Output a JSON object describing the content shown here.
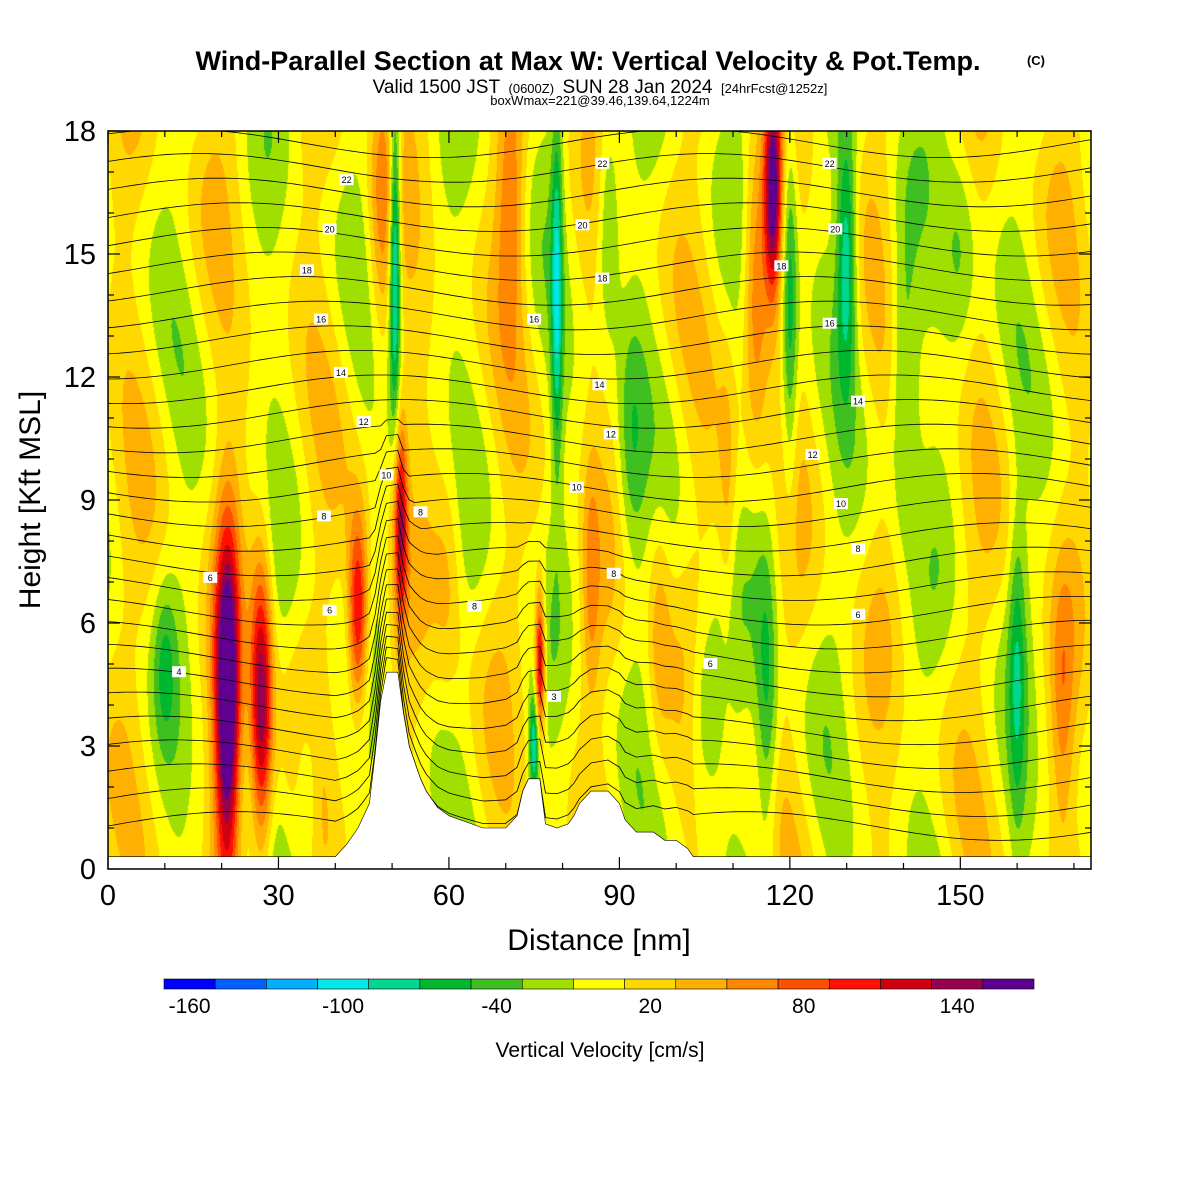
{
  "chart_data": {
    "type": "heatmap",
    "title": {
      "main": "Wind-Parallel Section at Max W: Vertical Velocity & Pot.Temp.",
      "copyright": "(C)",
      "valid_prefix": "Valid 1500 JST",
      "valid_z": "(0600Z)",
      "valid_date": "SUN 28 Jan 2024",
      "forecast": "[24hrFcst@1252z]",
      "boxmax": "boxWmax=221@39.46,139.64,1224m"
    },
    "xlabel": "Distance [nm]",
    "ylabel": "Height [Kft MSL]",
    "xlim": [
      0,
      173
    ],
    "ylim": [
      0,
      18
    ],
    "x_ticks": [
      "0",
      "30",
      "60",
      "90",
      "120",
      "150"
    ],
    "y_ticks": [
      "0",
      "3",
      "6",
      "9",
      "12",
      "15",
      "18"
    ],
    "colorbar": {
      "label": "Vertical Velocity [cm/s]",
      "tick_labels": [
        "-160",
        "-100",
        "-40",
        "20",
        "80",
        "140"
      ],
      "bin_min": -170,
      "bin_width": 20,
      "colors": [
        "#0000ff",
        "#0060ff",
        "#00b0ff",
        "#00e8e8",
        "#00d890",
        "#00b830",
        "#40c020",
        "#a0e000",
        "#ffff00",
        "#ffd800",
        "#ffb000",
        "#ff8800",
        "#ff5000",
        "#ff1000",
        "#d00010",
        "#980050",
        "#600090"
      ]
    },
    "terrain": [
      [
        0,
        0.3
      ],
      [
        40,
        0.3
      ],
      [
        42,
        0.6
      ],
      [
        44,
        1.0
      ],
      [
        46,
        1.6
      ],
      [
        47,
        2.8
      ],
      [
        48,
        4.1
      ],
      [
        49,
        4.8
      ],
      [
        51,
        4.8
      ],
      [
        52,
        3.8
      ],
      [
        53,
        3.0
      ],
      [
        54,
        2.6
      ],
      [
        55,
        2.2
      ],
      [
        56,
        1.9
      ],
      [
        57,
        1.7
      ],
      [
        58,
        1.5
      ],
      [
        60,
        1.3
      ],
      [
        62,
        1.2
      ],
      [
        64,
        1.1
      ],
      [
        66,
        1.0
      ],
      [
        70,
        1.0
      ],
      [
        72,
        1.3
      ],
      [
        73,
        1.9
      ],
      [
        74,
        2.2
      ],
      [
        76,
        2.2
      ],
      [
        77,
        1.1
      ],
      [
        79,
        1.0
      ],
      [
        81,
        1.1
      ],
      [
        82,
        1.3
      ],
      [
        83,
        1.6
      ],
      [
        85,
        1.9
      ],
      [
        88,
        1.9
      ],
      [
        90,
        1.6
      ],
      [
        91,
        1.2
      ],
      [
        93,
        0.9
      ],
      [
        96,
        0.9
      ],
      [
        98,
        0.7
      ],
      [
        100,
        0.7
      ],
      [
        102,
        0.5
      ],
      [
        103,
        0.3
      ],
      [
        173,
        0.3
      ]
    ],
    "w_features": [
      {
        "x": 21,
        "z": 4,
        "sx": 2.2,
        "sz": 4.2,
        "w": 190
      },
      {
        "x": 27,
        "z": 4,
        "sx": 2.0,
        "sz": 3.6,
        "w": 150
      },
      {
        "x": 44,
        "z": 6.2,
        "sx": 1.8,
        "sz": 2.4,
        "w": 130
      },
      {
        "x": 51.5,
        "z": 8.5,
        "sx": 1.2,
        "sz": 2.5,
        "w": 120
      },
      {
        "x": 50.5,
        "z": 15,
        "sx": 1.0,
        "sz": 4.0,
        "w": -120
      },
      {
        "x": 48,
        "z": 16,
        "sx": 2.2,
        "sz": 4.0,
        "w": 50
      },
      {
        "x": 76,
        "z": 5,
        "sx": 0.9,
        "sz": 1.8,
        "w": 140
      },
      {
        "x": 75,
        "z": 3,
        "sx": 0.9,
        "sz": 1.3,
        "w": -100
      },
      {
        "x": 79,
        "z": 14,
        "sx": 1.0,
        "sz": 4.5,
        "w": -80
      },
      {
        "x": 71,
        "z": 16,
        "sx": 2.5,
        "sz": 3.0,
        "w": 60
      },
      {
        "x": 88,
        "z": 16,
        "sx": 2.0,
        "sz": 3.0,
        "w": -50
      },
      {
        "x": 117,
        "z": 16.5,
        "sx": 1.5,
        "sz": 2.6,
        "w": 150
      },
      {
        "x": 114,
        "z": 14,
        "sx": 2.2,
        "sz": 3.5,
        "w": 70
      },
      {
        "x": 120,
        "z": 14,
        "sx": 1.4,
        "sz": 5.0,
        "w": -70
      },
      {
        "x": 116,
        "z": 4,
        "sx": 2.0,
        "sz": 4.0,
        "w": -60
      },
      {
        "x": 130,
        "z": 15,
        "sx": 1.8,
        "sz": 3.0,
        "w": -90
      },
      {
        "x": 97,
        "z": 6,
        "sx": 2.0,
        "sz": 3.0,
        "w": 40
      },
      {
        "x": 105,
        "z": 4,
        "sx": 3.0,
        "sz": 2.5,
        "w": -45
      },
      {
        "x": 140,
        "z": 12,
        "sx": 2.5,
        "sz": 4.0,
        "w": -50
      },
      {
        "x": 150,
        "z": 15,
        "sx": 3.0,
        "sz": 3.0,
        "w": -40
      },
      {
        "x": 160,
        "z": 5,
        "sx": 1.5,
        "sz": 4.0,
        "w": -50
      },
      {
        "x": 168,
        "z": 4,
        "sx": 2.0,
        "sz": 3.0,
        "w": 40
      },
      {
        "x": 10,
        "z": 5,
        "sx": 2.0,
        "sz": 2.0,
        "w": -35
      },
      {
        "x": 35,
        "z": 2,
        "sx": 2.0,
        "sz": 2.0,
        "w": -40
      },
      {
        "x": 60,
        "z": 7,
        "sx": 2.5,
        "sz": 3.0,
        "w": 30
      },
      {
        "x": 85,
        "z": 7,
        "sx": 1.5,
        "sz": 3.0,
        "w": 40
      },
      {
        "x": 92,
        "z": 10,
        "sx": 2.5,
        "sz": 3.0,
        "w": -45
      },
      {
        "x": 109,
        "z": 9,
        "sx": 1.5,
        "sz": 3.5,
        "w": 30
      }
    ],
    "theta_labels": [
      {
        "text": "22",
        "x": 42,
        "z": 16.8
      },
      {
        "text": "20",
        "x": 39,
        "z": 15.6
      },
      {
        "text": "18",
        "x": 35,
        "z": 14.6
      },
      {
        "text": "16",
        "x": 37.5,
        "z": 13.4
      },
      {
        "text": "14",
        "x": 41,
        "z": 12.1
      },
      {
        "text": "12",
        "x": 45,
        "z": 10.9
      },
      {
        "text": "10",
        "x": 49,
        "z": 9.6
      },
      {
        "text": "8",
        "x": 38,
        "z": 8.6
      },
      {
        "text": "6",
        "x": 18,
        "z": 7.1
      },
      {
        "text": "4",
        "x": 12.5,
        "z": 4.8
      },
      {
        "text": "8",
        "x": 55,
        "z": 8.7
      },
      {
        "text": "6",
        "x": 39,
        "z": 6.3
      },
      {
        "text": "8",
        "x": 64.5,
        "z": 6.4
      },
      {
        "text": "16",
        "x": 75,
        "z": 13.4
      },
      {
        "text": "20",
        "x": 83.5,
        "z": 15.7
      },
      {
        "text": "22",
        "x": 87,
        "z": 17.2
      },
      {
        "text": "18",
        "x": 87,
        "z": 14.4
      },
      {
        "text": "14",
        "x": 86.5,
        "z": 11.8
      },
      {
        "text": "12",
        "x": 88.5,
        "z": 10.6
      },
      {
        "text": "10",
        "x": 82.5,
        "z": 9.3
      },
      {
        "text": "8",
        "x": 89,
        "z": 7.2
      },
      {
        "text": "3",
        "x": 78.5,
        "z": 4.2
      },
      {
        "text": "6",
        "x": 106,
        "z": 5.0
      },
      {
        "text": "22",
        "x": 127,
        "z": 17.2
      },
      {
        "text": "20",
        "x": 128,
        "z": 15.6
      },
      {
        "text": "18",
        "x": 118.5,
        "z": 14.7
      },
      {
        "text": "16",
        "x": 127,
        "z": 13.3
      },
      {
        "text": "14",
        "x": 132,
        "z": 11.4
      },
      {
        "text": "12",
        "x": 124,
        "z": 10.1
      },
      {
        "text": "10",
        "x": 129,
        "z": 8.9
      },
      {
        "text": "8",
        "x": 132,
        "z": 7.8
      },
      {
        "text": "6",
        "x": 132,
        "z": 6.2
      }
    ]
  }
}
